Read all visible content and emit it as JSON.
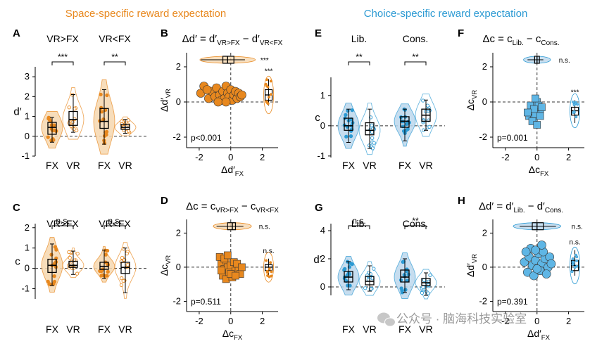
{
  "colors": {
    "orange": "#E8881E",
    "orange_fill": "#F6D7AF",
    "blue": "#2C9AD3",
    "blue_fill": "#BCD7EC",
    "blue_light": "#5FB6E5"
  },
  "headers": {
    "left": "Space-specific reward expectation",
    "right": "Choice-specific reward expectation"
  },
  "watermark": {
    "text": "公众号 · 脑海科技实验室",
    "icon": "wechat-icon"
  },
  "chart_data": [
    {
      "id": "A",
      "type": "violin",
      "xlabel": "",
      "ylabel": "d′",
      "ylim": [
        -1,
        3.5
      ],
      "yticks": [
        -1,
        0,
        1,
        2,
        3
      ],
      "groups": [
        {
          "title": "VR>FX",
          "sig": "***",
          "categories": [
            "FX",
            "VR"
          ],
          "boxes": [
            {
              "median": 0.45,
              "q1": 0.1,
              "q3": 0.7,
              "min": -0.3,
              "max": 0.95
            },
            {
              "median": 0.85,
              "q1": 0.55,
              "q3": 1.25,
              "min": 0.2,
              "max": 2.1
            }
          ]
        },
        {
          "title": "VR<FX",
          "sig": "**",
          "categories": [
            "FX",
            "VR"
          ],
          "boxes": [
            {
              "median": 0.75,
              "q1": 0.4,
              "q3": 1.4,
              "min": -0.4,
              "max": 2.35
            },
            {
              "median": 0.45,
              "q1": 0.35,
              "q3": 0.6,
              "min": 0.15,
              "max": 0.85
            }
          ]
        }
      ]
    },
    {
      "id": "B",
      "type": "scatter",
      "title": "Δd′ = d′VR>FX − d′VR<FX",
      "xlabel": "Δd′FX",
      "ylabel": "Δd′VR",
      "xlim": [
        -2.8,
        3
      ],
      "ylim": [
        -2.6,
        2.8
      ],
      "xticks": [
        -2,
        0,
        2
      ],
      "yticks": [
        -2,
        0,
        2
      ],
      "stat": "p<0.001",
      "sig_top": "***",
      "sig_right": "***",
      "points": [
        [
          -1.9,
          0.5
        ],
        [
          -1.7,
          0.9
        ],
        [
          -1.4,
          0.2
        ],
        [
          -1.2,
          0.6
        ],
        [
          -1.0,
          0.3
        ],
        [
          -0.9,
          0.8
        ],
        [
          -0.7,
          0.4
        ],
        [
          -0.6,
          0.1
        ],
        [
          -0.5,
          0.6
        ],
        [
          -0.4,
          0.2
        ],
        [
          -0.3,
          0.9
        ],
        [
          -0.2,
          0.5
        ],
        [
          -0.1,
          0.3
        ],
        [
          0.0,
          0.7
        ],
        [
          0.1,
          0.1
        ],
        [
          0.2,
          0.4
        ],
        [
          0.3,
          0.6
        ],
        [
          0.4,
          0.2
        ],
        [
          0.5,
          0.5
        ],
        [
          -0.8,
          0.0
        ],
        [
          0.6,
          0.3
        ],
        [
          -1.5,
          0.7
        ],
        [
          -0.3,
          0.0
        ],
        [
          0.7,
          0.4
        ]
      ],
      "marginal_top": {
        "median": -0.2,
        "q1": -0.5,
        "q3": 0.2,
        "min": -1.9,
        "max": 0.9,
        "pos": 2.4
      },
      "marginal_right": {
        "median": 0.4,
        "q1": 0.1,
        "q3": 0.7,
        "min": -0.2,
        "max": 1.3,
        "pos": 2.4
      }
    },
    {
      "id": "C",
      "type": "violin",
      "xlabel": "",
      "ylabel": "c",
      "ylim": [
        -1.5,
        2.2
      ],
      "yticks": [
        -1,
        0,
        1,
        2
      ],
      "groups": [
        {
          "title": "VR>FX",
          "sig": "n.s.",
          "categories": [
            "FX",
            "VR"
          ],
          "boxes": [
            {
              "median": 0.15,
              "q1": -0.2,
              "q3": 0.45,
              "min": -0.85,
              "max": 1.2
            },
            {
              "median": 0.15,
              "q1": 0.05,
              "q3": 0.35,
              "min": -0.3,
              "max": 0.85
            }
          ]
        },
        {
          "title": "VR<FX",
          "sig": "n.s.",
          "categories": [
            "FX",
            "VR"
          ],
          "boxes": [
            {
              "median": 0.1,
              "q1": -0.05,
              "q3": 0.3,
              "min": -0.5,
              "max": 0.9
            },
            {
              "median": 0.05,
              "q1": -0.25,
              "q3": 0.3,
              "min": -1.2,
              "max": 1.0
            }
          ]
        }
      ]
    },
    {
      "id": "D",
      "type": "scatter",
      "title": "Δc = cVR>FX − cVR<FX",
      "xlabel": "ΔcFX",
      "ylabel": "ΔcVR",
      "xlim": [
        -2.8,
        3
      ],
      "ylim": [
        -2.6,
        2.8
      ],
      "xticks": [
        -2,
        0,
        2
      ],
      "yticks": [
        -2,
        0,
        2
      ],
      "stat": "p=0.511",
      "sig_top": "n.s.",
      "sig_right": "n.s.",
      "points": [
        [
          -0.6,
          0.2
        ],
        [
          -0.4,
          -0.1
        ],
        [
          -0.3,
          0.4
        ],
        [
          -0.2,
          0.0
        ],
        [
          0.0,
          0.1
        ],
        [
          -0.5,
          -0.5
        ],
        [
          -0.1,
          -0.3
        ],
        [
          0.3,
          -0.2
        ],
        [
          0.5,
          -0.1
        ],
        [
          -0.7,
          0.6
        ],
        [
          -0.3,
          -0.7
        ],
        [
          0.2,
          0.3
        ],
        [
          0.6,
          -0.4
        ],
        [
          -0.4,
          0.5
        ],
        [
          0.1,
          -0.6
        ],
        [
          0.4,
          0.2
        ],
        [
          -0.6,
          -0.2
        ],
        [
          0.0,
          -0.4
        ],
        [
          0.7,
          0.0
        ],
        [
          -0.2,
          0.7
        ],
        [
          0.3,
          -0.5
        ]
      ],
      "marginal_top": {
        "median": 0.1,
        "q1": -0.2,
        "q3": 0.3,
        "min": -0.9,
        "max": 0.8,
        "pos": 2.4
      },
      "marginal_right": {
        "median": 0.0,
        "q1": -0.2,
        "q3": 0.15,
        "min": -0.6,
        "max": 0.5,
        "pos": 2.4
      }
    },
    {
      "id": "E",
      "type": "violin",
      "xlabel": "",
      "ylabel": "c",
      "ylim": [
        -1.05,
        1.6
      ],
      "yticks": [
        -1,
        0,
        1
      ],
      "groups": [
        {
          "title": "Lib.",
          "sig": "**",
          "categories": [
            "FX",
            "VR"
          ],
          "boxes": [
            {
              "median": 0.0,
              "q1": -0.15,
              "q3": 0.25,
              "min": -0.55,
              "max": 0.55
            },
            {
              "median": -0.15,
              "q1": -0.3,
              "q3": 0.1,
              "min": -0.75,
              "max": 0.55
            }
          ]
        },
        {
          "title": "Cons.",
          "sig": "**",
          "categories": [
            "FX",
            "VR"
          ],
          "boxes": [
            {
              "median": 0.15,
              "q1": -0.05,
              "q3": 0.3,
              "min": -0.5,
              "max": 0.55
            },
            {
              "median": 0.35,
              "q1": 0.15,
              "q3": 0.55,
              "min": -0.15,
              "max": 0.85
            }
          ]
        }
      ]
    },
    {
      "id": "F",
      "type": "scatter",
      "title": "Δc = cLib. − cCons.",
      "xlabel": "ΔcFX",
      "ylabel": "ΔcVR",
      "xlim": [
        -2.8,
        3
      ],
      "ylim": [
        -2.6,
        2.8
      ],
      "xticks": [
        -2,
        0,
        2
      ],
      "yticks": [
        -2,
        0,
        2
      ],
      "stat": "p=0.001",
      "sig_top": "n.s.",
      "sig_right": "***",
      "points": [
        [
          -0.5,
          -0.8
        ],
        [
          -0.3,
          -0.5
        ],
        [
          -0.2,
          -0.9
        ],
        [
          0.0,
          -0.3
        ],
        [
          0.1,
          -0.6
        ],
        [
          -0.4,
          -0.2
        ],
        [
          0.2,
          -0.4
        ],
        [
          -0.1,
          -0.7
        ],
        [
          0.0,
          0.0
        ],
        [
          -0.3,
          -1.1
        ],
        [
          0.1,
          -0.2
        ],
        [
          -0.2,
          -0.4
        ],
        [
          0.2,
          -0.8
        ],
        [
          -0.6,
          -0.6
        ],
        [
          0.0,
          -1.3
        ],
        [
          -0.1,
          0.2
        ],
        [
          0.3,
          -0.3
        ]
      ],
      "marginal_top": {
        "median": 0.0,
        "q1": -0.15,
        "q3": 0.15,
        "min": -0.6,
        "max": 0.4,
        "pos": 2.4
      },
      "marginal_right": {
        "median": -0.5,
        "q1": -0.75,
        "q3": -0.3,
        "min": -1.2,
        "max": 0.1,
        "pos": 2.4
      }
    },
    {
      "id": "G",
      "type": "violin",
      "xlabel": "",
      "ylabel": "d′",
      "ylim": [
        -0.6,
        4.5
      ],
      "yticks": [
        0,
        2,
        4
      ],
      "groups": [
        {
          "title": "Lib.",
          "sig": "n.s.",
          "categories": [
            "FX",
            "VR"
          ],
          "boxes": [
            {
              "median": 0.7,
              "q1": 0.35,
              "q3": 1.1,
              "min": -0.2,
              "max": 1.8
            },
            {
              "median": 0.4,
              "q1": 0.15,
              "q3": 0.75,
              "min": -0.3,
              "max": 1.5
            }
          ]
        },
        {
          "title": "Cons.",
          "sig": "**",
          "categories": [
            "FX",
            "VR"
          ],
          "boxes": [
            {
              "median": 0.7,
              "q1": 0.35,
              "q3": 1.2,
              "min": -0.4,
              "max": 2.0
            },
            {
              "median": 0.3,
              "q1": 0.1,
              "q3": 0.6,
              "min": -0.6,
              "max": 1.0
            }
          ]
        }
      ]
    },
    {
      "id": "H",
      "type": "scatter",
      "title": "Δd′ = d′Lib. − d′Cons.",
      "xlabel": "Δd′FX",
      "ylabel": "Δd′VR",
      "xlim": [
        -2.8,
        3
      ],
      "ylim": [
        -2.6,
        2.8
      ],
      "xticks": [
        -2,
        0,
        2
      ],
      "yticks": [
        -2,
        0,
        2
      ],
      "stat": "p=0.391",
      "sig_top": "n.s.",
      "sig_right": "n.s.",
      "points": [
        [
          -0.8,
          0.3
        ],
        [
          -0.5,
          0.6
        ],
        [
          -0.3,
          0.1
        ],
        [
          -0.1,
          0.4
        ],
        [
          0.1,
          0.8
        ],
        [
          0.3,
          0.2
        ],
        [
          0.5,
          0.5
        ],
        [
          0.7,
          0.0
        ],
        [
          -0.6,
          -0.3
        ],
        [
          -0.2,
          -0.5
        ],
        [
          0.2,
          -0.2
        ],
        [
          0.4,
          0.9
        ],
        [
          -0.4,
          1.1
        ],
        [
          0.0,
          -0.1
        ],
        [
          0.6,
          -0.4
        ],
        [
          0.8,
          0.6
        ],
        [
          -0.7,
          0.9
        ],
        [
          0.3,
          1.3
        ],
        [
          -0.1,
          1.0
        ],
        [
          0.9,
          0.2
        ]
      ],
      "marginal_top": {
        "median": 0.0,
        "q1": -0.3,
        "q3": 0.4,
        "min": -1.1,
        "max": 1.2,
        "pos": 2.4
      },
      "marginal_right": {
        "median": 0.1,
        "q1": -0.2,
        "q3": 0.4,
        "min": -0.5,
        "max": 1.0,
        "pos": 2.4
      }
    }
  ]
}
